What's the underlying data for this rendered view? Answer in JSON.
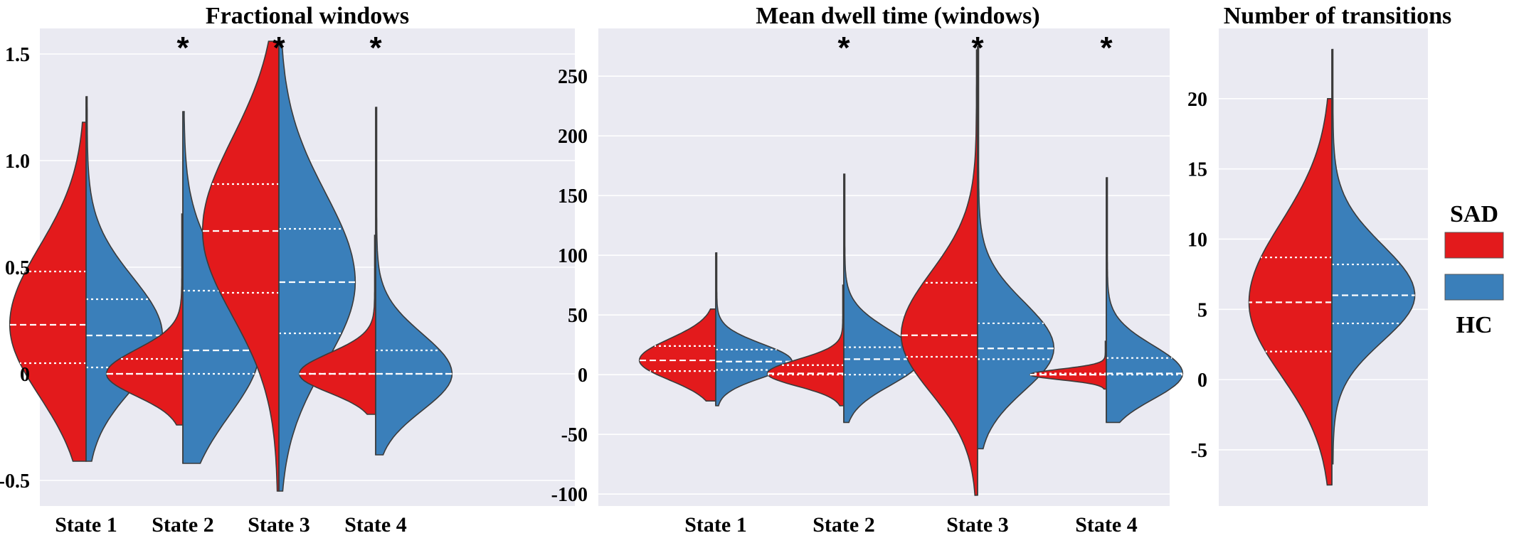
{
  "legend": {
    "entries": [
      {
        "label": "SAD",
        "color": "#e31a1c"
      },
      {
        "label": "HC",
        "color": "#3a7fba"
      }
    ]
  },
  "chart_data": [
    {
      "type": "violin",
      "title": "Fractional windows",
      "ylim": [
        -0.62,
        1.62
      ],
      "yticks": [
        -0.5,
        0,
        0.5,
        1.0,
        1.5
      ],
      "ytick_labels": [
        "-0.5",
        "0",
        "0.5",
        "1.0",
        "1.5"
      ],
      "grid": true,
      "categories": [
        "State 1",
        "State 2",
        "State 3",
        "State 4"
      ],
      "significance": [
        "",
        "*",
        "*",
        "*"
      ],
      "series": [
        {
          "name": "SAD",
          "range": [
            [
              -0.41,
              1.18
            ],
            [
              -0.24,
              0.75
            ],
            [
              -0.55,
              1.56
            ],
            [
              -0.19,
              0.65
            ]
          ],
          "quartiles": [
            [
              0.05,
              0.23,
              0.48
            ],
            [
              0.0,
              0.0,
              0.07
            ],
            [
              0.38,
              0.67,
              0.89
            ],
            [
              0.0,
              0.0,
              0.0
            ]
          ]
        },
        {
          "name": "HC",
          "range": [
            [
              -0.41,
              1.3
            ],
            [
              -0.42,
              1.23
            ],
            [
              -0.55,
              1.56
            ],
            [
              -0.38,
              1.25
            ]
          ],
          "quartiles": [
            [
              0.03,
              0.18,
              0.35
            ],
            [
              0.0,
              0.11,
              0.39
            ],
            [
              0.19,
              0.43,
              0.68
            ],
            [
              0.0,
              0.0,
              0.11
            ]
          ]
        }
      ]
    },
    {
      "type": "violin",
      "title": "Mean dwell time (windows)",
      "ylim": [
        -110,
        290
      ],
      "yticks": [
        -100,
        -50,
        0,
        50,
        100,
        150,
        200,
        250
      ],
      "ytick_labels": [
        "-100",
        "-50",
        "0",
        "50",
        "100",
        "150",
        "200",
        "250"
      ],
      "grid": true,
      "categories": [
        "State 1",
        "State 2",
        "State 3",
        "State 4"
      ],
      "significance": [
        "",
        "*",
        "*",
        "*"
      ],
      "series": [
        {
          "name": "SAD",
          "range": [
            [
              -22,
              55
            ],
            [
              -26,
              75
            ],
            [
              -101,
              272
            ],
            [
              -12,
              28
            ]
          ],
          "quartiles": [
            [
              3,
              12,
              24
            ],
            [
              0,
              1,
              8
            ],
            [
              15,
              33,
              77
            ],
            [
              0,
              0,
              1
            ]
          ]
        },
        {
          "name": "HC",
          "range": [
            [
              -26,
              102
            ],
            [
              -40,
              168
            ],
            [
              -62,
              275
            ],
            [
              -40,
              165
            ]
          ],
          "quartiles": [
            [
              4,
              11,
              21
            ],
            [
              0,
              13,
              23
            ],
            [
              13,
              22,
              43
            ],
            [
              0,
              1,
              14
            ]
          ]
        }
      ]
    },
    {
      "type": "violin",
      "title": "Number of transitions",
      "ylim": [
        -9,
        25
      ],
      "yticks": [
        -5,
        0,
        5,
        10,
        15,
        20
      ],
      "ytick_labels": [
        "-5",
        "0",
        "5",
        "10",
        "15",
        "20"
      ],
      "grid": true,
      "categories": [],
      "significance": [
        ""
      ],
      "series": [
        {
          "name": "SAD",
          "range": [
            [
              -7.5,
              20.0
            ]
          ],
          "quartiles": [
            [
              2.0,
              5.5,
              8.7
            ]
          ]
        },
        {
          "name": "HC",
          "range": [
            [
              -6.0,
              23.5
            ]
          ],
          "quartiles": [
            [
              4.0,
              6.0,
              8.2
            ]
          ]
        }
      ]
    }
  ]
}
